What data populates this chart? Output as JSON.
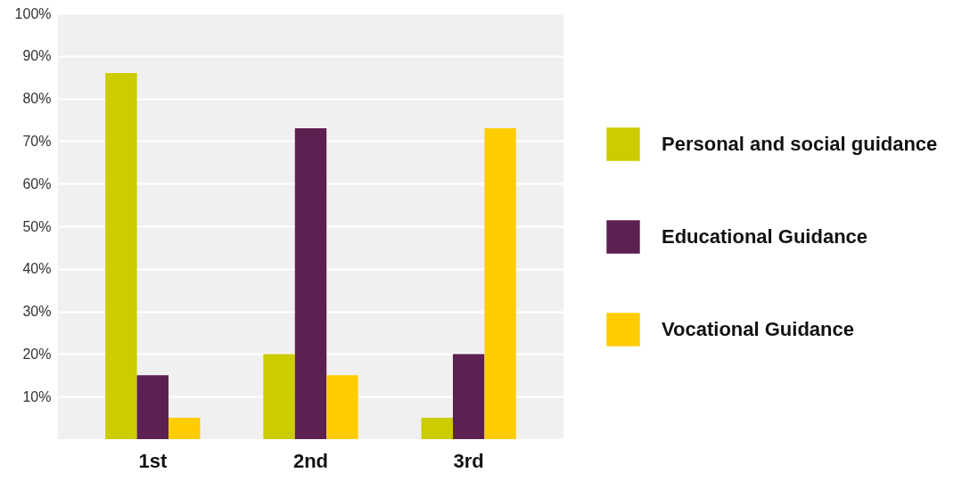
{
  "chart_data": {
    "type": "bar",
    "categories": [
      "1st",
      "2nd",
      "3rd"
    ],
    "series": [
      {
        "name": "Personal and social guidance",
        "color": "#cccc00",
        "values": [
          86,
          20,
          5
        ]
      },
      {
        "name": "Educational Guidance",
        "color": "#5c2150",
        "values": [
          15,
          73,
          20
        ]
      },
      {
        "name": "Vocational Guidance",
        "color": "#ffcc00",
        "values": [
          5,
          15,
          73
        ]
      }
    ],
    "ylim": [
      0,
      100
    ],
    "yticks": [
      {
        "value": 10,
        "label": "10%"
      },
      {
        "value": 20,
        "label": "20%"
      },
      {
        "value": 30,
        "label": "30%"
      },
      {
        "value": 40,
        "label": "40%"
      },
      {
        "value": 50,
        "label": "50%"
      },
      {
        "value": 60,
        "label": "60%"
      },
      {
        "value": 70,
        "label": "70%"
      },
      {
        "value": 80,
        "label": "80%"
      },
      {
        "value": 90,
        "label": "90%"
      },
      {
        "value": 100,
        "label": "100%"
      }
    ],
    "grid": "y",
    "legend": "right"
  }
}
